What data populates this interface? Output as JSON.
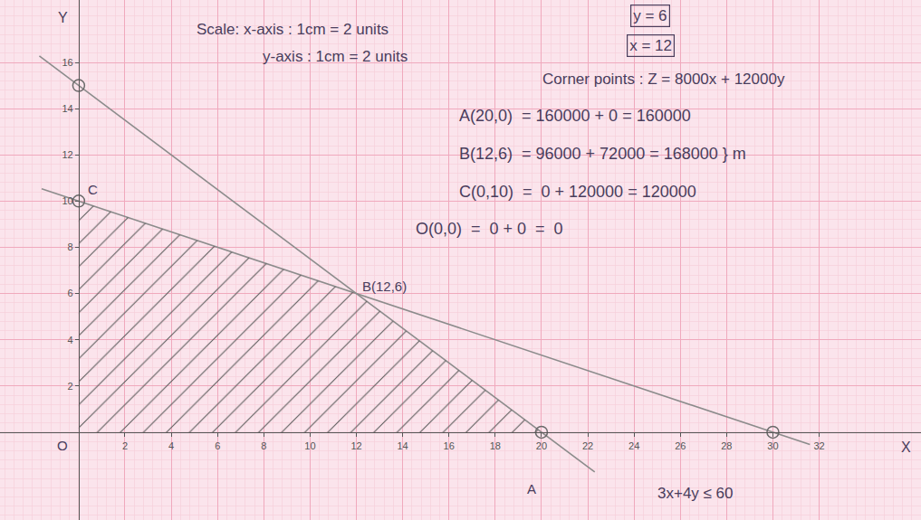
{
  "chart_data": {
    "type": "line",
    "xlim": [
      -3.4,
      36.4
    ],
    "ylim": [
      -3.8,
      18.7
    ],
    "xticks": [
      2,
      4,
      6,
      8,
      10,
      12,
      14,
      16,
      18,
      20,
      22,
      24,
      26,
      28,
      30,
      32
    ],
    "yticks": [
      2,
      4,
      6,
      8,
      10,
      12,
      14,
      16
    ],
    "grid": true,
    "axis_labels": {
      "x": "X",
      "y": "Y",
      "origin": "O"
    },
    "series": [
      {
        "type": "line",
        "color": "#8c8c8c",
        "x": [
          -1.7,
          22.3
        ],
        "values": [
          16.275,
          -1.725
        ]
      },
      {
        "type": "line",
        "color": "#8c8c8c",
        "x": [
          -1.6,
          31.6
        ],
        "values": [
          10.533,
          -0.533
        ]
      },
      {
        "type": "area",
        "color": "#5a5a5a",
        "x": [
          0,
          20,
          12,
          0,
          0
        ],
        "values": [
          0,
          0,
          6,
          10,
          0
        ]
      },
      {
        "type": "scatter",
        "marker": "circle-open",
        "color": "#6a6a6a",
        "x": [
          0,
          0,
          20,
          30
        ],
        "values": [
          15,
          10,
          0,
          0
        ]
      }
    ],
    "points": [
      {
        "label": "A",
        "x": 20,
        "y": 0
      },
      {
        "label": "B(12,6)",
        "x": 12,
        "y": 6
      },
      {
        "label": "C",
        "x": 0,
        "y": 10
      }
    ],
    "annotations": [
      "Scale: x-axis : 1cm = 2 units",
      "y-axis : 1cm = 2 units",
      "Corner points : Z = 8000x + 12000y",
      "A(20,0)  = 160000 + 0 = 160000",
      "B(12,6)  = 96000 + 72000 = 168000 } m",
      "C(0,10)  =  0 + 120000 = 120000",
      "O(0,0)  =  0 + 0  =  0",
      "3x+4y ≤ 60"
    ],
    "boxed": [
      "y = 6",
      "x = 12"
    ]
  }
}
